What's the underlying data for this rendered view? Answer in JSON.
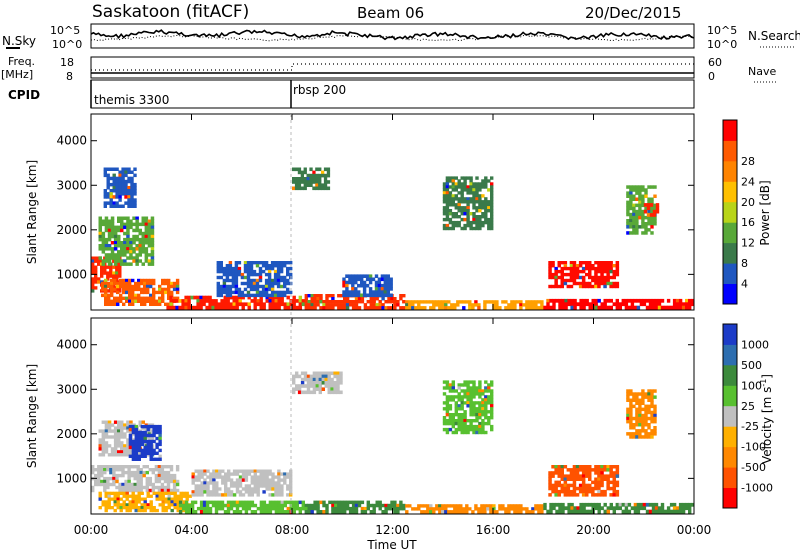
{
  "header": {
    "station": "Saskatoon (fitACF)",
    "beam": "Beam 06",
    "date": "20/Dec/2015"
  },
  "noise_panel": {
    "left_label": "N.Sky",
    "right_label": "N.Search",
    "y_ticks_left": [
      "10^5",
      "10^0"
    ],
    "y_ticks_right": [
      "10^5",
      "10^0"
    ]
  },
  "freq_panel": {
    "left_label": "Freq.",
    "left_unit": "[MHz]",
    "left_ticks": [
      "18",
      "8"
    ],
    "right_label": "Nave",
    "right_ticks": [
      "60",
      "0"
    ]
  },
  "cpid_panel": {
    "label": "CPID",
    "programs": [
      {
        "name": "themis 3300",
        "start_hour": 0
      },
      {
        "name": "rbsp 200",
        "start_hour": 8
      }
    ]
  },
  "x_axis": {
    "label": "Time UT",
    "ticks": [
      "00:00",
      "04:00",
      "08:00",
      "12:00",
      "16:00",
      "20:00",
      "00:00"
    ]
  },
  "chart_data": [
    {
      "type": "heatmap",
      "name": "power",
      "ylabel": "Slant Range [km]",
      "ylim": [
        200,
        4600
      ],
      "y_ticks": [
        "1000",
        "2000",
        "3000",
        "4000"
      ],
      "xlim": [
        0,
        24
      ],
      "colorbar": {
        "label": "Power [dB]",
        "ticks": [
          "4",
          "8",
          "12",
          "16",
          "20",
          "24",
          "28"
        ],
        "colors": [
          "#0000ff",
          "#1f57c0",
          "#3a7a4a",
          "#58a838",
          "#b8d418",
          "#ffc000",
          "#ff8400",
          "#ff5a00",
          "#ff0000"
        ]
      },
      "regions": [
        {
          "t": [
            0.0,
            1.2
          ],
          "r": [
            600,
            1400
          ],
          "c": "#ff2600"
        },
        {
          "t": [
            0.4,
            3.5
          ],
          "r": [
            300,
            900
          ],
          "c": "#ff5a00"
        },
        {
          "t": [
            3.0,
            8.5
          ],
          "r": [
            220,
            520
          ],
          "c": "#ff1a00"
        },
        {
          "t": [
            8.5,
            12.5
          ],
          "r": [
            220,
            560
          ],
          "c": "#ff3000"
        },
        {
          "t": [
            12.5,
            18.0
          ],
          "r": [
            220,
            420
          ],
          "c": "#ffa000"
        },
        {
          "t": [
            18.0,
            24.0
          ],
          "r": [
            220,
            450
          ],
          "c": "#ff0000"
        },
        {
          "t": [
            18.2,
            21.0
          ],
          "r": [
            700,
            1300
          ],
          "c": "#ff0a00"
        },
        {
          "t": [
            0.3,
            2.5
          ],
          "r": [
            1200,
            2300
          ],
          "c": "#58a838"
        },
        {
          "t": [
            0.5,
            1.8
          ],
          "r": [
            2500,
            3400
          ],
          "c": "#1f57c0"
        },
        {
          "t": [
            5.0,
            8.0
          ],
          "r": [
            500,
            1300
          ],
          "c": "#1f57c0"
        },
        {
          "t": [
            8.0,
            9.5
          ],
          "r": [
            2900,
            3400
          ],
          "c": "#3a7a4a"
        },
        {
          "t": [
            10.0,
            12.0
          ],
          "r": [
            500,
            1000
          ],
          "c": "#1f57c0"
        },
        {
          "t": [
            21.3,
            22.5
          ],
          "r": [
            1900,
            3000
          ],
          "c": "#58a838"
        },
        {
          "t": [
            22.0,
            22.6
          ],
          "r": [
            2300,
            2600
          ],
          "c": "#ff2200"
        },
        {
          "t": [
            14.0,
            16.0
          ],
          "r": [
            2000,
            3200
          ],
          "c": "#3a7a4a"
        }
      ]
    },
    {
      "type": "heatmap",
      "name": "velocity",
      "ylabel": "Slant Range [km]",
      "ylim": [
        200,
        4600
      ],
      "y_ticks": [
        "1000",
        "2000",
        "3000",
        "4000"
      ],
      "xlim": [
        0,
        24
      ],
      "colorbar": {
        "label": "Velocity [m s^-1]",
        "ticks": [
          "1000",
          "500",
          "100",
          "25",
          "-25",
          "-100",
          "-500",
          "-1000"
        ],
        "colors": [
          "#1c3cc8",
          "#2d6eb0",
          "#3c8a3c",
          "#58c030",
          "#c0c0c0",
          "#ffb000",
          "#ff8800",
          "#ff5200",
          "#ff0000"
        ]
      },
      "regions": [
        {
          "t": [
            0.0,
            3.5
          ],
          "r": [
            700,
            1300
          ],
          "c": "#c0c0c0"
        },
        {
          "t": [
            0.3,
            4.0
          ],
          "r": [
            250,
            700
          ],
          "c": "#ffb000"
        },
        {
          "t": [
            3.5,
            8.5
          ],
          "r": [
            220,
            500
          ],
          "c": "#58c030"
        },
        {
          "t": [
            4.0,
            8.0
          ],
          "r": [
            600,
            1200
          ],
          "c": "#c0c0c0"
        },
        {
          "t": [
            8.5,
            12.5
          ],
          "r": [
            220,
            500
          ],
          "c": "#3c8a3c"
        },
        {
          "t": [
            12.5,
            18.0
          ],
          "r": [
            220,
            420
          ],
          "c": "#ff8800"
        },
        {
          "t": [
            18.0,
            24.0
          ],
          "r": [
            220,
            450
          ],
          "c": "#3c8a3c"
        },
        {
          "t": [
            18.2,
            21.0
          ],
          "r": [
            600,
            1300
          ],
          "c": "#ff5200"
        },
        {
          "t": [
            0.3,
            2.5
          ],
          "r": [
            1500,
            2300
          ],
          "c": "#c0c0c0"
        },
        {
          "t": [
            8.0,
            10.0
          ],
          "r": [
            2900,
            3400
          ],
          "c": "#c0c0c0"
        },
        {
          "t": [
            21.3,
            22.5
          ],
          "r": [
            1900,
            3000
          ],
          "c": "#ff8800"
        },
        {
          "t": [
            14.0,
            16.0
          ],
          "r": [
            2000,
            3200
          ],
          "c": "#58c030"
        },
        {
          "t": [
            1.5,
            2.8
          ],
          "r": [
            1400,
            2200
          ],
          "c": "#1c3cc8"
        }
      ]
    }
  ]
}
